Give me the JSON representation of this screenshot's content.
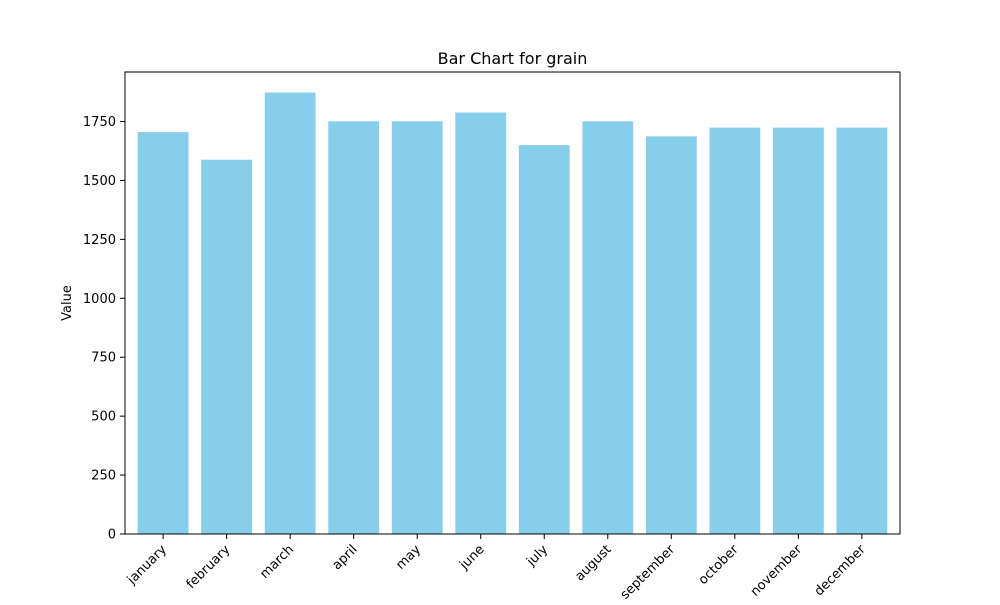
{
  "chart_data": {
    "type": "bar",
    "title": "Bar Chart for grain",
    "xlabel": "",
    "ylabel": "Value",
    "categories": [
      "january",
      "february",
      "march",
      "april",
      "may",
      "june",
      "july",
      "august",
      "september",
      "october",
      "november",
      "december"
    ],
    "values": [
      1705,
      1588,
      1873,
      1751,
      1751,
      1788,
      1650,
      1751,
      1687,
      1724,
      1724,
      1724
    ],
    "ylim": [
      0,
      1960
    ],
    "yticks": [
      0,
      250,
      500,
      750,
      1000,
      1250,
      1500,
      1750
    ],
    "grid": false,
    "legend": "none",
    "colors": {
      "bar": "#87ceeb",
      "axes": "#000000",
      "background": "#ffffff"
    }
  }
}
